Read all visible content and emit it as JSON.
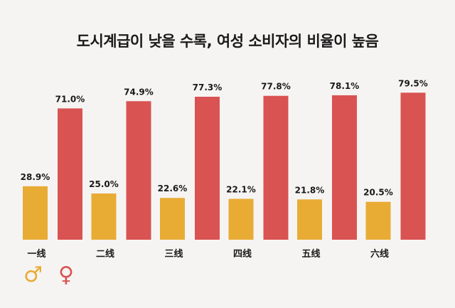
{
  "title": "도시계급이 낮을 수록, 여성 소비자의 비율이 높음",
  "legend": {
    "male_symbol": "♂",
    "female_symbol": "♀"
  },
  "colors": {
    "male": "#e8ac35",
    "female": "#d95352",
    "background": "#f6f4f3",
    "text": "#1a1a1a"
  },
  "chart_data": {
    "type": "bar",
    "title": "도시계급이 낮을 수록, 여성 소비자의 비율이 높음",
    "categories": [
      "一线",
      "二线",
      "三线",
      "四线",
      "五线",
      "六线"
    ],
    "series": [
      {
        "name": "♂",
        "values": [
          28.9,
          25.0,
          22.6,
          22.1,
          21.8,
          20.5
        ],
        "labels": [
          "28.9%",
          "25.0%",
          "22.6%",
          "22.1%",
          "21.8%",
          "20.5%"
        ]
      },
      {
        "name": "♀",
        "values": [
          71.0,
          74.9,
          77.3,
          77.8,
          78.1,
          79.5
        ],
        "labels": [
          "71.0%",
          "74.9%",
          "77.3%",
          "77.8%",
          "78.1%",
          "79.5%"
        ]
      }
    ],
    "ylim": [
      0,
      100
    ],
    "grid": false,
    "legend_position": "bottom-left"
  }
}
